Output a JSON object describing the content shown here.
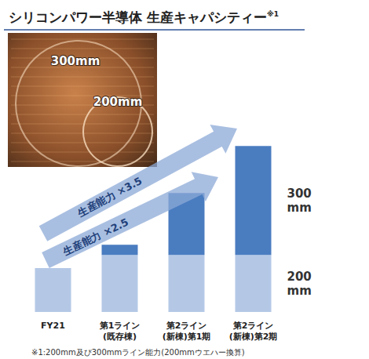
{
  "chart_data": {
    "type": "bar",
    "title": "シリコンパワー半導体 生産キャパシティー",
    "title_note": "※1",
    "categories": [
      "FY21",
      "第1ライン\n(既存棟)",
      "第2ライン\n(新棟)第1期",
      "第2ライン\n(新棟)第2期"
    ],
    "series": [
      {
        "name": "200mm",
        "color": "#b4c8e6",
        "values": [
          100,
          130,
          130,
          130
        ]
      },
      {
        "name": "300mm",
        "color": "#4a7cc0",
        "values": [
          0,
          23,
          141,
          248
        ]
      }
    ],
    "stacked": true,
    "ylim": [
      0,
      400
    ],
    "tick_labels": "x",
    "grid": false,
    "annotations": [
      "生産能力 ×2.5",
      "生産能力 ×3.5"
    ],
    "photo_labels": [
      "300mm",
      "200mm"
    ],
    "footnote": "※1:200mm及び300mmライン能力(200mmウエハー換算)"
  }
}
